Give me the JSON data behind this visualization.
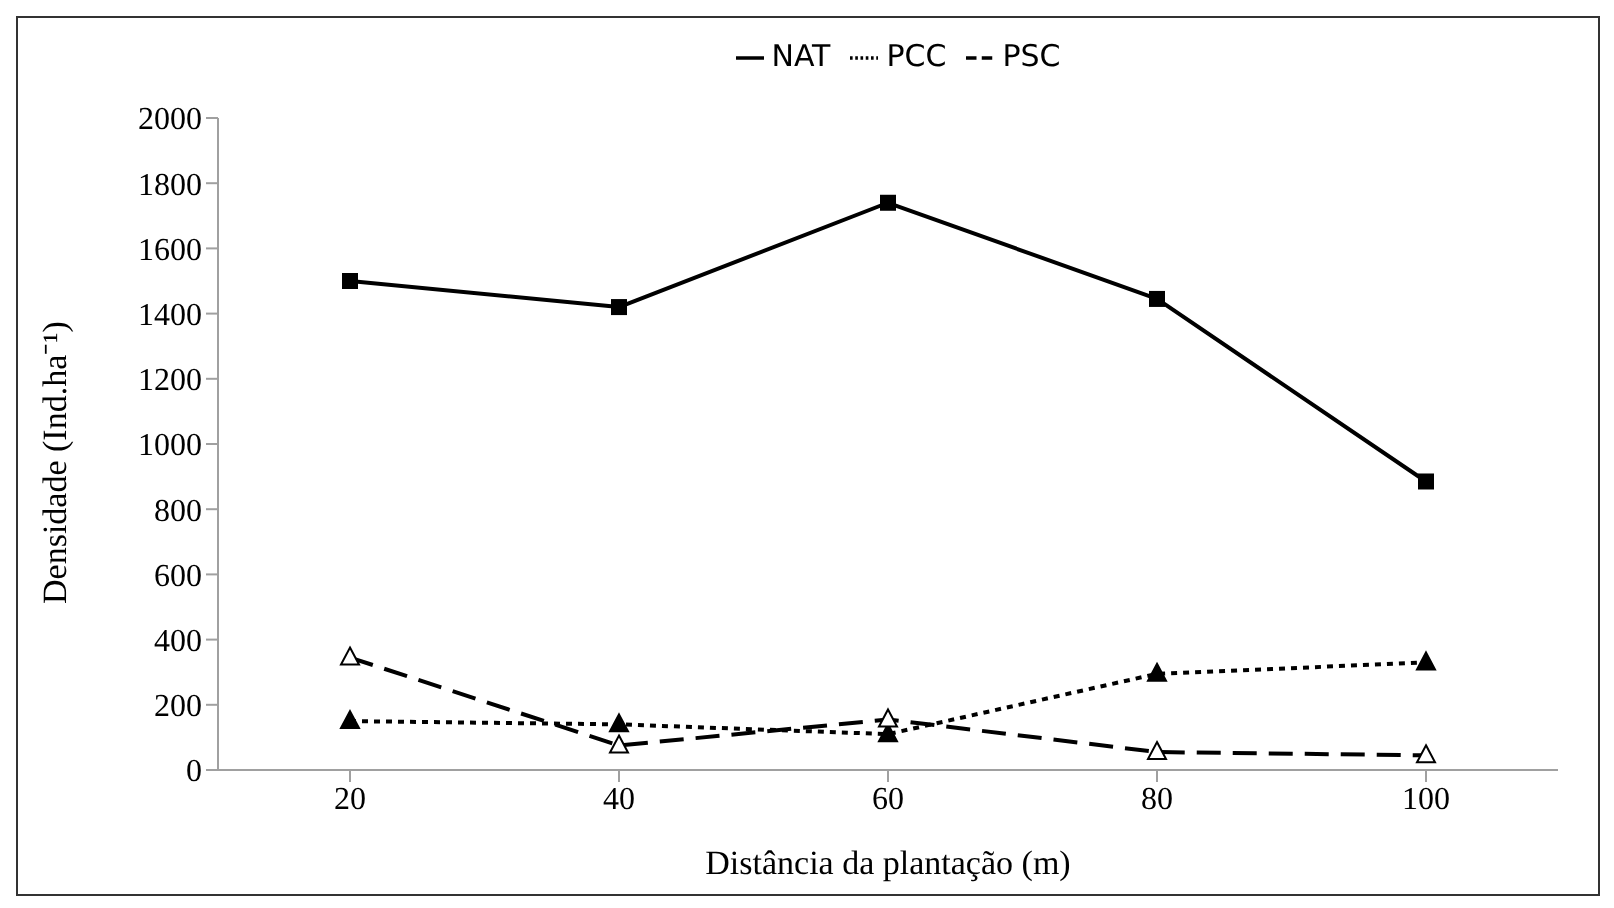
{
  "chart_data": {
    "type": "line",
    "xlabel": "Distância da plantação (m)",
    "ylabel": "Densidade  (Ind.ha⁻¹)",
    "categories": [
      "20",
      "40",
      "60",
      "80",
      "100"
    ],
    "series": [
      {
        "name": "NAT",
        "color": "#000000",
        "marker": "square",
        "line_style": "solid",
        "values": [
          1500,
          1420,
          1740,
          1445,
          885
        ]
      },
      {
        "name": "PCC",
        "color": "#000000",
        "marker": "triangle",
        "line_style": "dotted",
        "values": [
          150,
          140,
          110,
          295,
          330
        ]
      },
      {
        "name": "PSC",
        "color": "#000000",
        "marker": "triangle",
        "line_style": "dashed",
        "values": [
          345,
          75,
          155,
          55,
          45
        ]
      }
    ],
    "ylim": [
      0,
      2000
    ],
    "yticks": [
      0,
      200,
      400,
      600,
      800,
      1000,
      1200,
      1400,
      1600,
      1800,
      2000
    ],
    "grid": false,
    "legend": "top"
  }
}
